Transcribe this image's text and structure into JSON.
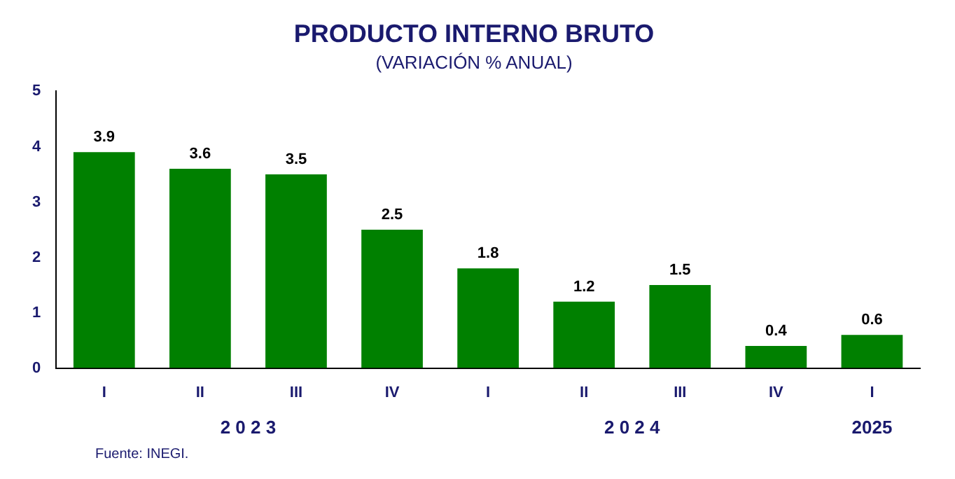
{
  "chart_data": {
    "type": "bar",
    "title": "PRODUCTO INTERNO BRUTO",
    "subtitle": "(VARIACIÓN % ANUAL)",
    "categories": [
      "I",
      "II",
      "III",
      "IV",
      "I",
      "II",
      "III",
      "IV",
      "I"
    ],
    "values": [
      3.9,
      3.6,
      3.5,
      2.5,
      1.8,
      1.2,
      1.5,
      0.4,
      0.6
    ],
    "color": "#008000",
    "ylim": [
      0,
      5
    ],
    "yticks": [
      0,
      1,
      2,
      3,
      4,
      5
    ],
    "grid": false,
    "legend": false,
    "data_labels": true,
    "annotations": [
      "2 0 2 3",
      "2 0 2 4",
      "2025",
      "Fuente: INEGI."
    ]
  }
}
